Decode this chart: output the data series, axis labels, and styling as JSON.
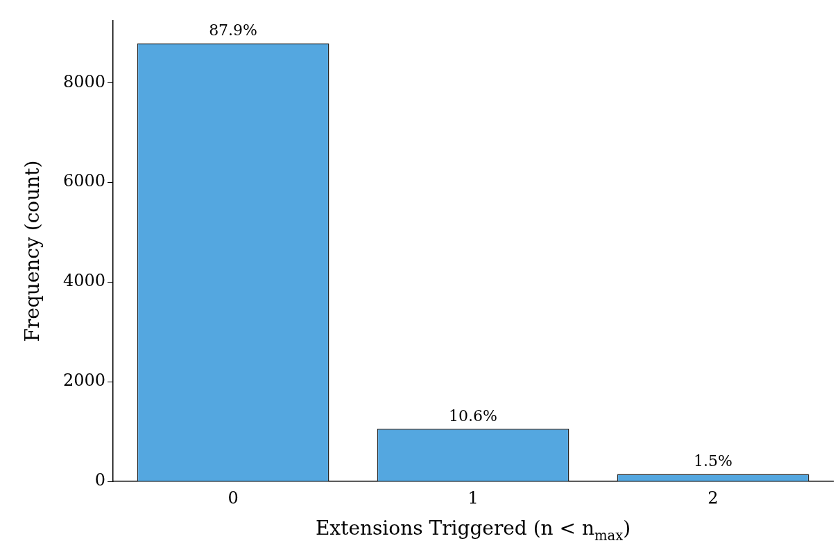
{
  "chart_data": {
    "type": "bar",
    "categories": [
      "0",
      "1",
      "2"
    ],
    "values": [
      8790,
      1060,
      150
    ],
    "annotations": [
      {
        "text": "87.9%",
        "x": "0",
        "y": 8790
      },
      {
        "text": "10.6%",
        "x": "1",
        "y": 1060
      },
      {
        "text": "1.5%",
        "x": "2",
        "y": 150
      }
    ],
    "color": "#54a7e0",
    "xlabel": "Extensions Triggered (n < n$_{max}$)",
    "ylabel": "Frequency (count)",
    "ylim": [
      0,
      9240
    ],
    "yticks": [
      0,
      2000,
      4000,
      6000,
      8000
    ],
    "grid": false,
    "legend": false
  }
}
